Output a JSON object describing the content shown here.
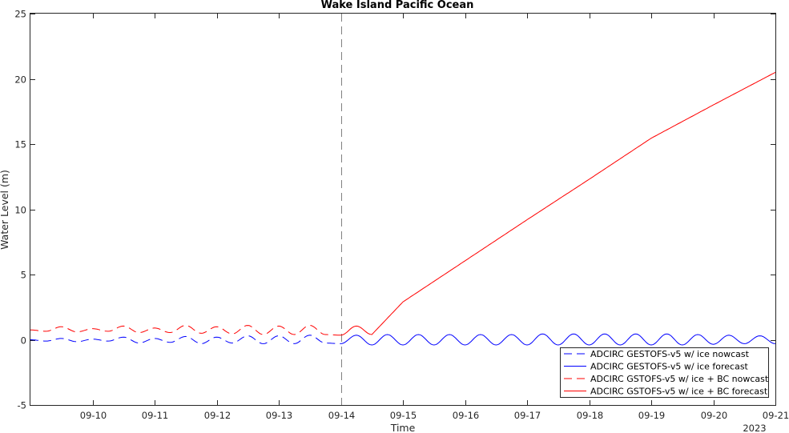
{
  "chart_data": {
    "type": "line",
    "title": "Wake Island Pacific Ocean",
    "xlabel": "Time",
    "ylabel": "Water Level (m)",
    "year_label": "2023",
    "xlim": [
      "2023-09-09",
      "2023-09-21"
    ],
    "ylim": [
      -5,
      25
    ],
    "yticks": [
      -5,
      0,
      5,
      10,
      15,
      20,
      25
    ],
    "xticks": [
      "09-10",
      "09-11",
      "09-12",
      "09-13",
      "09-14",
      "09-15",
      "09-16",
      "09-17",
      "09-18",
      "09-19",
      "09-20",
      "09-21"
    ],
    "forecast_start": "2023-09-14",
    "grid": false,
    "legend_location": "bottom-right",
    "colors": {
      "blue": "#0000ff",
      "red": "#ff0000",
      "divider": "#808080",
      "axis": "#262626"
    },
    "series": [
      {
        "name": "ADCIRC GESTOFS-v5 w/ ice nowcast",
        "color": "#0000ff",
        "style": "dashed",
        "x": [
          "2023-09-09 00:00",
          "2023-09-09 06:00",
          "2023-09-09 12:00",
          "2023-09-09 18:00",
          "2023-09-10 00:00",
          "2023-09-10 06:00",
          "2023-09-10 12:00",
          "2023-09-10 18:00",
          "2023-09-11 00:00",
          "2023-09-11 06:00",
          "2023-09-11 12:00",
          "2023-09-11 18:00",
          "2023-09-12 00:00",
          "2023-09-12 06:00",
          "2023-09-12 12:00",
          "2023-09-12 18:00",
          "2023-09-13 00:00",
          "2023-09-13 06:00",
          "2023-09-13 12:00",
          "2023-09-13 18:00",
          "2023-09-14 00:00"
        ],
        "y": [
          0.0,
          -0.1,
          0.1,
          -0.15,
          0.05,
          -0.1,
          0.2,
          -0.25,
          0.1,
          -0.2,
          0.25,
          -0.3,
          0.2,
          -0.25,
          0.3,
          -0.3,
          0.3,
          -0.3,
          0.35,
          -0.25,
          -0.3
        ]
      },
      {
        "name": "ADCIRC GESTOFS-v5 w/ ice forecast",
        "color": "#0000ff",
        "style": "solid",
        "x": [
          "2023-09-14 00:00",
          "2023-09-14 06:00",
          "2023-09-14 12:00",
          "2023-09-14 18:00",
          "2023-09-15 00:00",
          "2023-09-15 06:00",
          "2023-09-15 12:00",
          "2023-09-15 18:00",
          "2023-09-16 00:00",
          "2023-09-16 06:00",
          "2023-09-16 12:00",
          "2023-09-16 18:00",
          "2023-09-17 00:00",
          "2023-09-17 06:00",
          "2023-09-17 12:00",
          "2023-09-17 18:00",
          "2023-09-18 00:00",
          "2023-09-18 06:00",
          "2023-09-18 12:00",
          "2023-09-18 18:00",
          "2023-09-19 00:00",
          "2023-09-19 06:00",
          "2023-09-19 12:00",
          "2023-09-19 18:00",
          "2023-09-20 00:00",
          "2023-09-20 06:00",
          "2023-09-20 12:00",
          "2023-09-20 18:00",
          "2023-09-21 00:00"
        ],
        "y": [
          -0.3,
          0.35,
          -0.4,
          0.4,
          -0.4,
          0.4,
          -0.4,
          0.4,
          -0.4,
          0.4,
          -0.4,
          0.4,
          -0.4,
          0.45,
          -0.4,
          0.45,
          -0.4,
          0.45,
          -0.4,
          0.45,
          -0.4,
          0.45,
          -0.4,
          0.4,
          -0.35,
          0.35,
          -0.3,
          0.3,
          -0.3
        ]
      },
      {
        "name": "ADCIRC GSTOFS-v5 w/ ice + BC nowcast",
        "color": "#ff0000",
        "style": "dashed",
        "x": [
          "2023-09-09 00:00",
          "2023-09-09 06:00",
          "2023-09-09 12:00",
          "2023-09-09 18:00",
          "2023-09-10 00:00",
          "2023-09-10 06:00",
          "2023-09-10 12:00",
          "2023-09-10 18:00",
          "2023-09-11 00:00",
          "2023-09-11 06:00",
          "2023-09-11 12:00",
          "2023-09-11 18:00",
          "2023-09-12 00:00",
          "2023-09-12 06:00",
          "2023-09-12 12:00",
          "2023-09-12 18:00",
          "2023-09-13 00:00",
          "2023-09-13 06:00",
          "2023-09-13 12:00",
          "2023-09-13 18:00",
          "2023-09-14 00:00"
        ],
        "y": [
          0.75,
          0.65,
          1.0,
          0.6,
          0.85,
          0.65,
          1.05,
          0.55,
          0.9,
          0.55,
          1.1,
          0.5,
          1.0,
          0.45,
          1.1,
          0.4,
          1.05,
          0.4,
          1.1,
          0.4,
          0.35
        ]
      },
      {
        "name": "ADCIRC GSTOFS-v5 w/ ice + BC forecast",
        "color": "#ff0000",
        "style": "solid",
        "x": [
          "2023-09-14 00:00",
          "2023-09-14 06:00",
          "2023-09-14 12:00",
          "2023-09-15 00:00",
          "2023-09-16 00:00",
          "2023-09-17 00:00",
          "2023-09-18 00:00",
          "2023-09-19 00:00",
          "2023-09-20 00:00",
          "2023-09-21 00:00"
        ],
        "y": [
          0.35,
          1.05,
          0.4,
          2.9,
          6.05,
          9.2,
          12.3,
          15.45,
          18.0,
          20.5
        ]
      }
    ]
  }
}
